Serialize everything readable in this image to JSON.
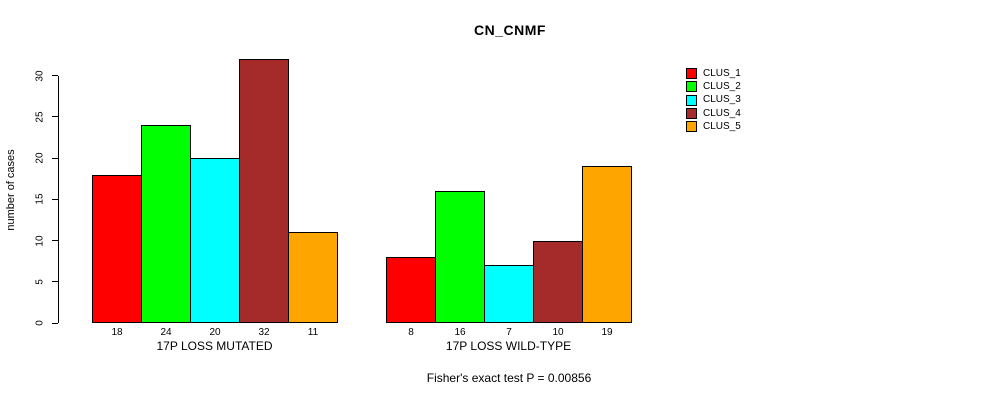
{
  "chart_data": {
    "type": "bar",
    "title": "CN_CNMF",
    "ylabel": "number of cases",
    "xlabel": "",
    "ylim": [
      0,
      30
    ],
    "yticks": [
      0,
      5,
      10,
      15,
      20,
      25,
      30
    ],
    "grid": false,
    "legend_position": "right",
    "bar_value_labels_shown": true,
    "categories": [
      "17P LOSS MUTATED",
      "17P LOSS WILD-TYPE"
    ],
    "series": [
      {
        "name": "CLUS_1",
        "color": "#FF0000",
        "values": [
          18,
          8
        ]
      },
      {
        "name": "CLUS_2",
        "color": "#00FF00",
        "values": [
          24,
          16
        ]
      },
      {
        "name": "CLUS_3",
        "color": "#00FFFF",
        "values": [
          20,
          7
        ]
      },
      {
        "name": "CLUS_4",
        "color": "#A52A2A",
        "values": [
          32,
          10
        ]
      },
      {
        "name": "CLUS_5",
        "color": "#FFA500",
        "values": [
          11,
          19
        ]
      }
    ],
    "annotation": "Fisher's exact test P = 0.00856"
  },
  "colors": {
    "axis": "#000000",
    "bar_border": "#000000",
    "background": "#FFFFFF",
    "text": "#000000"
  }
}
